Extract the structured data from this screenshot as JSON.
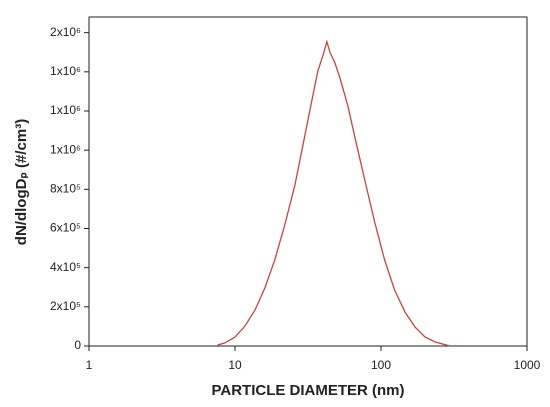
{
  "chart_data": {
    "type": "line",
    "x_label": "PARTICLE DIAMETER (nm)",
    "y_label": "dN/dlogDₚ (#/cm³)",
    "x_scale": "log",
    "x": [
      7.6,
      8.5,
      10,
      11.7,
      13.7,
      16,
      18.7,
      21.9,
      25.7,
      30.1,
      33.6,
      37,
      40,
      42.6,
      44.8,
      48.3,
      52.5,
      59.2,
      67,
      77.5,
      90.6,
      106,
      124,
      146,
      171,
      200,
      235,
      297
    ],
    "series": [
      {
        "color": "#c8433e",
        "values": [
          5000,
          15300,
          45900,
          101900,
          183400,
          295500,
          438200,
          616600,
          820400,
          1075200,
          1253500,
          1406400,
          1482800,
          1554100,
          1498100,
          1447100,
          1365600,
          1228000,
          1049700,
          845900,
          631800,
          438200,
          285400,
          173200,
          96800,
          45900,
          20400,
          0
        ]
      }
    ],
    "xlim": [
      1,
      1000
    ],
    "xticks": [
      1,
      10,
      100,
      1000
    ],
    "ylim": [
      0,
      1680000
    ],
    "yticks": [
      0,
      {
        "value": 200000,
        "label": "2x10⁵"
      },
      {
        "value": 400000,
        "label": "4x10⁵"
      },
      {
        "value": 600000,
        "label": "6x10⁵"
      },
      {
        "value": 800000,
        "label": "8x10⁵"
      },
      {
        "value": 1000000,
        "label": "1x10⁶"
      },
      {
        "value": 1200000,
        "label": "1x10⁶"
      },
      {
        "value": 1400000,
        "label": "1x10⁶"
      },
      {
        "value": 1600000,
        "label": "2x10⁶"
      }
    ]
  }
}
